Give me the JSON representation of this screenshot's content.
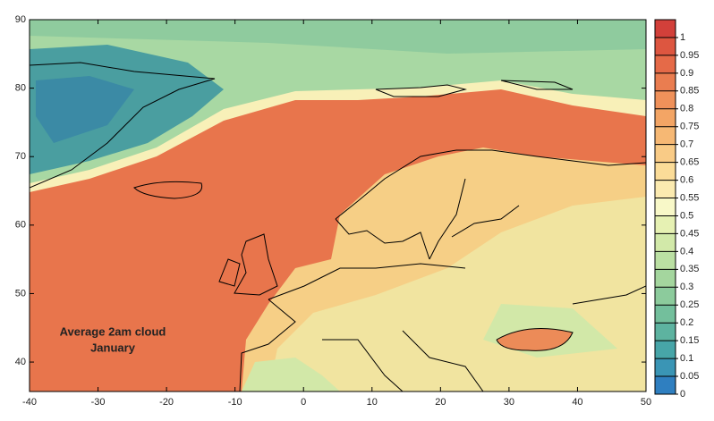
{
  "map": {
    "xlim": [
      -40,
      50
    ],
    "ylim": [
      35.7,
      90
    ],
    "xticks": [
      -40,
      -30,
      -20,
      -10,
      0,
      10,
      20,
      30,
      40,
      50
    ],
    "yticks": [
      40,
      50,
      60,
      70,
      80,
      90
    ],
    "annotation": [
      "Average 2am cloud",
      "January"
    ]
  },
  "colorbar": {
    "range": [
      0,
      1.05
    ],
    "ticks": [
      0,
      0.05,
      0.1,
      0.15,
      0.2,
      0.25,
      0.3,
      0.35,
      0.4,
      0.45,
      0.5,
      0.55,
      0.6,
      0.65,
      0.7,
      0.75,
      0.8,
      0.85,
      0.9,
      0.95,
      1
    ],
    "colors": [
      "#2f7fc0",
      "#3a95b5",
      "#47a5a8",
      "#5db3a0",
      "#73bf9c",
      "#8ccb9c",
      "#a4d69e",
      "#bbe0a3",
      "#d2e9a9",
      "#e6f1b3",
      "#f8f8c8",
      "#fbeab0",
      "#fbdc98",
      "#f9cb86",
      "#f6b874",
      "#f3a565",
      "#ef915a",
      "#ea7d50",
      "#e56a48",
      "#dd5640",
      "#d2403a"
    ]
  }
}
